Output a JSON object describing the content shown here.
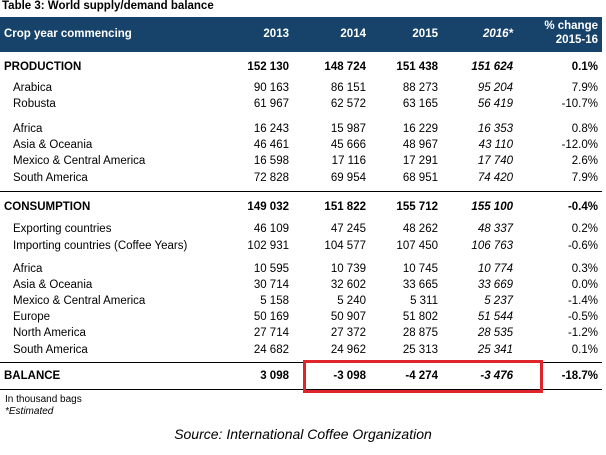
{
  "caption": "Table 3: World supply/demand balance",
  "header": {
    "label": "Crop year commencing",
    "cols": [
      "2013",
      "2014",
      "2015",
      "2016*"
    ],
    "change_line1": "% change",
    "change_line2": "2015-16"
  },
  "production": {
    "total": {
      "label": "PRODUCTION",
      "v": [
        "152 130",
        "148 724",
        "151 438",
        "151 624",
        "0.1%"
      ]
    },
    "rows": [
      {
        "label": "Arabica",
        "v": [
          "90 163",
          "86 151",
          "88 273",
          "95 204",
          "7.9%"
        ]
      },
      {
        "label": "Robusta",
        "v": [
          "61 967",
          "62 572",
          "63 165",
          "56 419",
          "-10.7%"
        ]
      },
      {
        "label": "Africa",
        "v": [
          "16 243",
          "15 987",
          "16 229",
          "16 353",
          "0.8%"
        ]
      },
      {
        "label": "Asia & Oceania",
        "v": [
          "46 461",
          "45 666",
          "48 967",
          "43 110",
          "-12.0%"
        ]
      },
      {
        "label": "Mexico & Central America",
        "v": [
          "16 598",
          "17 116",
          "17 291",
          "17 740",
          "2.6%"
        ]
      },
      {
        "label": "South America",
        "v": [
          "72 828",
          "69 954",
          "68 951",
          "74 420",
          "7.9%"
        ]
      }
    ]
  },
  "consumption": {
    "total": {
      "label": "CONSUMPTION",
      "v": [
        "149 032",
        "151 822",
        "155 712",
        "155 100",
        "-0.4%"
      ]
    },
    "rows": [
      {
        "label": "Exporting countries",
        "v": [
          "46 109",
          "47 245",
          "48 262",
          "48 337",
          "0.2%"
        ]
      },
      {
        "label": "Importing countries (Coffee Years)",
        "v": [
          "102 931",
          "104 577",
          "107 450",
          "106 763",
          "-0.6%"
        ]
      },
      {
        "label": "Africa",
        "v": [
          "10 595",
          "10 739",
          "10 745",
          "10 774",
          "0.3%"
        ]
      },
      {
        "label": "Asia & Oceania",
        "v": [
          "30 714",
          "32 602",
          "33 665",
          "33 669",
          "0.0%"
        ]
      },
      {
        "label": "Mexico & Central America",
        "v": [
          "5 158",
          "5 240",
          "5 311",
          "5 237",
          "-1.4%"
        ]
      },
      {
        "label": "Europe",
        "v": [
          "50 169",
          "50 907",
          "51 802",
          "51 544",
          "-0.5%"
        ]
      },
      {
        "label": "North America",
        "v": [
          "27 714",
          "27 372",
          "28 875",
          "28 535",
          "-1.2%"
        ]
      },
      {
        "label": "South America",
        "v": [
          "24 682",
          "24 962",
          "25 313",
          "25 341",
          "0.1%"
        ]
      }
    ]
  },
  "balance": {
    "label": "BALANCE",
    "v": [
      "3 098",
      "-3 098",
      "-4 274",
      "-3 476",
      "-18.7%"
    ]
  },
  "notes": {
    "unit": "In thousand bags",
    "estimated": "*Estimated"
  },
  "source": "Source: International Coffee Organization",
  "colors": {
    "header_bg": "#17436b",
    "highlight": "#e0242c"
  }
}
